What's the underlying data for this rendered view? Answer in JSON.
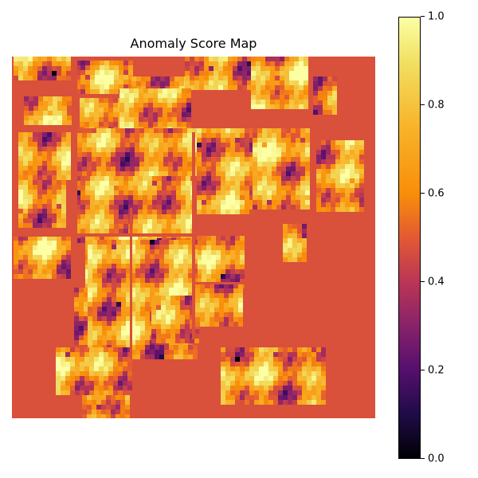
{
  "chart_data": {
    "type": "heatmap",
    "title": "Anomaly Score Map",
    "colormap": "inferno",
    "background_value": 0.6,
    "value_range": [
      0.0,
      1.0
    ],
    "axes_visible": false,
    "colorbar": {
      "position": "right",
      "ticks": [
        "0.0",
        "0.2",
        "0.4",
        "0.6",
        "0.8",
        "1.0"
      ]
    }
  }
}
